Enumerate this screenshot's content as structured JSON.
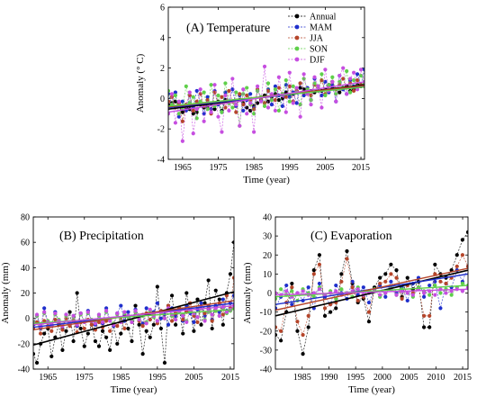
{
  "chart_data": [
    {
      "id": "A",
      "type": "line",
      "title": "(A) Temperature",
      "xlabel": "Time (year)",
      "ylabel": "Anomaly (° C)",
      "xlim": [
        1961,
        2016
      ],
      "ylim": [
        -4,
        6
      ],
      "xticks": [
        1965,
        1975,
        1985,
        1995,
        2005,
        2015
      ],
      "yticks": [
        -4,
        -2,
        0,
        2,
        4,
        6
      ],
      "legend": "top-right",
      "series": [
        {
          "name": "Annual",
          "color": "#000000",
          "trend": [
            -0.7,
            0.9
          ],
          "values": [
            -0.4,
            -0.3,
            -0.2,
            -0.5,
            -0.9,
            -0.6,
            -0.7,
            -1.0,
            -0.9,
            -0.4,
            -0.6,
            -0.5,
            -0.3,
            -0.7,
            -0.2,
            -0.8,
            -0.1,
            -0.3,
            -0.2,
            -0.4,
            -0.1,
            -0.3,
            -0.6,
            -0.8,
            -0.5,
            -0.3,
            -0.1,
            0.2,
            -0.2,
            0.1,
            0.3,
            -0.1,
            0.0,
            0.4,
            0.2,
            0.3,
            0.5,
            0.7,
            0.6,
            0.3,
            0.5,
            0.4,
            0.8,
            0.5,
            0.6,
            0.9,
            0.7,
            0.6,
            0.4,
            0.7,
            0.8,
            0.5,
            0.6,
            0.9,
            0.8,
            1.0
          ]
        },
        {
          "name": "MAM",
          "color": "#1f2fcc",
          "trend": [
            -0.6,
            0.8
          ],
          "values": [
            0.3,
            -0.5,
            0.4,
            -1.2,
            -0.2,
            -0.8,
            0.2,
            -0.6,
            0.5,
            -0.3,
            -1.0,
            0.1,
            -0.7,
            0.5,
            -0.4,
            -0.9,
            0.4,
            -0.2,
            0.6,
            -0.5,
            0.2,
            -0.8,
            -0.1,
            0.3,
            -0.6,
            0.5,
            0.1,
            -0.3,
            0.6,
            -0.4,
            0.8,
            0.2,
            -0.5,
            0.9,
            0.1,
            0.4,
            -0.3,
            1.0,
            0.2,
            0.7,
            -0.1,
            1.3,
            0.5,
            0.2,
            1.1,
            0.4,
            0.9,
            -0.2,
            1.5,
            0.6,
            0.3,
            1.2,
            0.8,
            1.6,
            0.9,
            1.9
          ]
        },
        {
          "name": "JJA",
          "color": "#b5452a",
          "trend": [
            -0.55,
            0.85
          ],
          "values": [
            -0.2,
            0.1,
            -0.6,
            -0.3,
            -1.5,
            -0.4,
            0.2,
            -0.8,
            -0.2,
            0.3,
            -0.5,
            -0.1,
            -1.0,
            0.4,
            -0.3,
            0.1,
            -0.6,
            0.5,
            -0.2,
            -0.9,
            0.3,
            -0.4,
            0.2,
            -0.1,
            -0.7,
            0.6,
            0.0,
            -0.3,
            0.5,
            0.2,
            -0.1,
            0.7,
            0.3,
            0.1,
            0.8,
            -0.2,
            0.5,
            1.0,
            0.4,
            0.6,
            0.2,
            0.9,
            0.5,
            1.2,
            0.3,
            0.8,
            1.1,
            0.6,
            0.9,
            1.3,
            0.7,
            1.0,
            0.5,
            1.2,
            0.9,
            0.8
          ]
        },
        {
          "name": "SON",
          "color": "#5fd04a",
          "trend": [
            -0.5,
            0.75
          ],
          "values": [
            0.5,
            -0.4,
            0.2,
            -1.0,
            -0.6,
            0.8,
            -0.3,
            0.1,
            -1.3,
            -0.2,
            0.4,
            -0.7,
            0.9,
            -0.5,
            0.2,
            -0.9,
            1.0,
            -0.3,
            -0.6,
            0.4,
            -1.8,
            0.3,
            0.7,
            -0.4,
            -1.0,
            0.5,
            0.1,
            -0.5,
            1.0,
            -0.1,
            0.6,
            -0.8,
            0.3,
            1.2,
            -0.2,
            0.8,
            0.4,
            -0.4,
            1.3,
            0.6,
            -0.1,
            1.0,
            0.5,
            1.6,
            0.2,
            0.9,
            1.4,
            0.3,
            1.1,
            0.7,
            1.8,
            0.4,
            1.2,
            0.8,
            1.5,
            1.0
          ]
        },
        {
          "name": "DJF",
          "color": "#c64ee0",
          "trend": [
            -0.9,
            1.1
          ],
          "values": [
            -1.0,
            0.3,
            -1.6,
            -0.2,
            -2.8,
            -0.5,
            0.4,
            -2.3,
            -0.7,
            0.6,
            -1.5,
            -0.3,
            -0.9,
            0.9,
            -1.2,
            -2.2,
            0.2,
            -0.8,
            1.3,
            -0.4,
            -1.8,
            0.6,
            -1.0,
            -0.3,
            -2.2,
            0.8,
            -0.2,
            2.1,
            -0.6,
            0.3,
            -0.8,
            1.4,
            0.2,
            -0.9,
            1.7,
            -0.3,
            0.7,
            -1.2,
            1.6,
            0.3,
            -0.4,
            1.4,
            0.8,
            -0.6,
            1.9,
            0.5,
            1.1,
            -0.2,
            1.5,
            2.0,
            0.3,
            1.3,
            1.7,
            0.6,
            1.9,
            1.1
          ]
        }
      ]
    },
    {
      "id": "B",
      "type": "line",
      "title": "(B) Precipitation",
      "xlabel": "Time (year)",
      "ylabel": "Anomaly (mm)",
      "xlim": [
        1961,
        2016
      ],
      "ylim": [
        -40,
        80
      ],
      "xticks": [
        1965,
        1975,
        1985,
        1995,
        2005,
        2015
      ],
      "yticks": [
        -40,
        -20,
        0,
        20,
        40,
        60,
        80
      ],
      "series": [
        {
          "name": "Annual",
          "color": "#000000",
          "trend": [
            -21,
            21
          ],
          "values": [
            -28,
            -35,
            -20,
            -12,
            -8,
            -30,
            -15,
            -5,
            -25,
            -10,
            5,
            -18,
            20,
            -8,
            -22,
            -12,
            -5,
            -18,
            -22,
            -10,
            -15,
            -25,
            -5,
            -20,
            -12,
            2,
            -8,
            -18,
            10,
            -5,
            -28,
            -10,
            -15,
            -5,
            25,
            -8,
            -35,
            10,
            18,
            -5,
            8,
            -12,
            20,
            5,
            -10,
            15,
            -5,
            12,
            30,
            -8,
            22,
            15,
            -5,
            20,
            35,
            60
          ]
        },
        {
          "name": "MAM",
          "color": "#1f2fcc",
          "trend": [
            -7,
            12
          ],
          "values": [
            -5,
            2,
            -8,
            8,
            -3,
            -6,
            5,
            -2,
            -8,
            3,
            -5,
            2,
            -6,
            4,
            -3,
            6,
            -2,
            -5,
            3,
            -4,
            8,
            -1,
            -6,
            4,
            10,
            -2,
            5,
            -3,
            7,
            2,
            -4,
            8,
            -1,
            5,
            12,
            0,
            3,
            -5,
            8,
            2,
            6,
            -2,
            10,
            4,
            -3,
            7,
            12,
            2,
            8,
            -1,
            10,
            5,
            15,
            6,
            12,
            18
          ]
        },
        {
          "name": "JJA",
          "color": "#b5452a",
          "trend": [
            -9,
            14
          ],
          "values": [
            -8,
            -3,
            -12,
            -2,
            -6,
            -10,
            -1,
            -4,
            -9,
            0,
            -6,
            -2,
            -11,
            -3,
            -8,
            -1,
            -5,
            -9,
            -3,
            -7,
            -2,
            -10,
            -4,
            -6,
            -1,
            -8,
            2,
            -3,
            5,
            -2,
            -6,
            4,
            -1,
            3,
            -4,
            6,
            0,
            10,
            -2,
            4,
            8,
            -1,
            5,
            12,
            2,
            -3,
            8,
            4,
            10,
            -2,
            6,
            12,
            3,
            18,
            8,
            32
          ]
        },
        {
          "name": "SON",
          "color": "#5fd04a",
          "trend": [
            -4,
            7
          ],
          "values": [
            -3,
            2,
            -5,
            4,
            -2,
            -4,
            3,
            -1,
            -5,
            2,
            -3,
            1,
            -4,
            3,
            -2,
            4,
            -1,
            -3,
            2,
            -2,
            5,
            -1,
            -4,
            3,
            -2,
            4,
            1,
            -2,
            5,
            -1,
            2,
            -3,
            6,
            1,
            -2,
            4,
            0,
            7,
            2,
            -1,
            5,
            3,
            -2,
            6,
            4,
            1,
            8,
            -1,
            5,
            3,
            6,
            2,
            8,
            4,
            6,
            8
          ]
        },
        {
          "name": "DJF",
          "color": "#c64ee0",
          "trend": [
            -5,
            10
          ],
          "values": [
            -4,
            3,
            -6,
            5,
            -3,
            -5,
            4,
            -2,
            -6,
            3,
            -4,
            2,
            -5,
            4,
            -3,
            5,
            -2,
            -4,
            3,
            -3,
            6,
            -2,
            -5,
            4,
            -3,
            5,
            2,
            -3,
            6,
            -1,
            3,
            -4,
            7,
            2,
            -2,
            5,
            0,
            8,
            3,
            -1,
            6,
            2,
            -3,
            7,
            4,
            1,
            9,
            -2,
            6,
            3,
            8,
            2,
            9,
            5,
            7,
            10
          ]
        }
      ]
    },
    {
      "id": "C",
      "type": "line",
      "title": "(C) Evaporation",
      "xlabel": "Time (year)",
      "ylabel": "Anomaly (mm)",
      "xlim": [
        1980,
        2016
      ],
      "ylim": [
        -40,
        40
      ],
      "xticks": [
        1985,
        1990,
        1995,
        2000,
        2005,
        2010,
        2015
      ],
      "yticks": [
        -40,
        -30,
        -20,
        -10,
        0,
        10,
        20,
        30,
        40
      ],
      "series": [
        {
          "name": "Annual",
          "color": "#000000",
          "trend": [
            -12,
            12
          ],
          "values": [
            -22,
            -25,
            -10,
            5,
            -20,
            -32,
            -18,
            12,
            20,
            -12,
            -10,
            -8,
            10,
            22,
            5,
            -5,
            -3,
            -15,
            3,
            8,
            10,
            15,
            12,
            -2,
            8,
            2,
            6,
            -18,
            -18,
            15,
            10,
            8,
            12,
            20,
            28,
            32
          ]
        },
        {
          "name": "MAM",
          "color": "#1f2fcc",
          "trend": [
            -6,
            10
          ],
          "values": [
            -8,
            -2,
            4,
            -6,
            0,
            -4,
            3,
            -8,
            5,
            -2,
            -6,
            4,
            0,
            -3,
            6,
            -1,
            3,
            -5,
            2,
            4,
            -2,
            6,
            0,
            3,
            -4,
            5,
            8,
            -2,
            4,
            6,
            -8,
            5,
            3,
            12,
            6,
            14
          ]
        },
        {
          "name": "JJA",
          "color": "#b5452a",
          "trend": [
            -9,
            13
          ],
          "values": [
            -18,
            -20,
            -5,
            3,
            -15,
            -22,
            -12,
            10,
            15,
            -8,
            -6,
            -5,
            6,
            18,
            3,
            -4,
            -2,
            -10,
            2,
            5,
            6,
            10,
            8,
            -3,
            4,
            0,
            3,
            -12,
            -12,
            10,
            6,
            5,
            8,
            14,
            20,
            14
          ]
        },
        {
          "name": "SON",
          "color": "#5fd04a",
          "trend": [
            -2,
            4
          ],
          "values": [
            -3,
            2,
            -1,
            1,
            -4,
            2,
            0,
            -2,
            3,
            -1,
            1,
            -3,
            2,
            0,
            -2,
            3,
            -1,
            1,
            2,
            -2,
            0,
            3,
            -1,
            2,
            0,
            -2,
            3,
            1,
            -1,
            4,
            0,
            2,
            -1,
            3,
            5,
            4
          ]
        },
        {
          "name": "DJF",
          "color": "#c64ee0",
          "trend": [
            -1,
            2
          ],
          "values": [
            0,
            -1,
            1,
            -2,
            0,
            1,
            -1,
            0,
            2,
            -1,
            0,
            1,
            -1,
            0,
            1,
            2,
            -1,
            0,
            1,
            -1,
            0,
            2,
            -1,
            1,
            0,
            -1,
            2,
            0,
            1,
            -1,
            2,
            0,
            1,
            2,
            1,
            3
          ]
        }
      ]
    }
  ]
}
